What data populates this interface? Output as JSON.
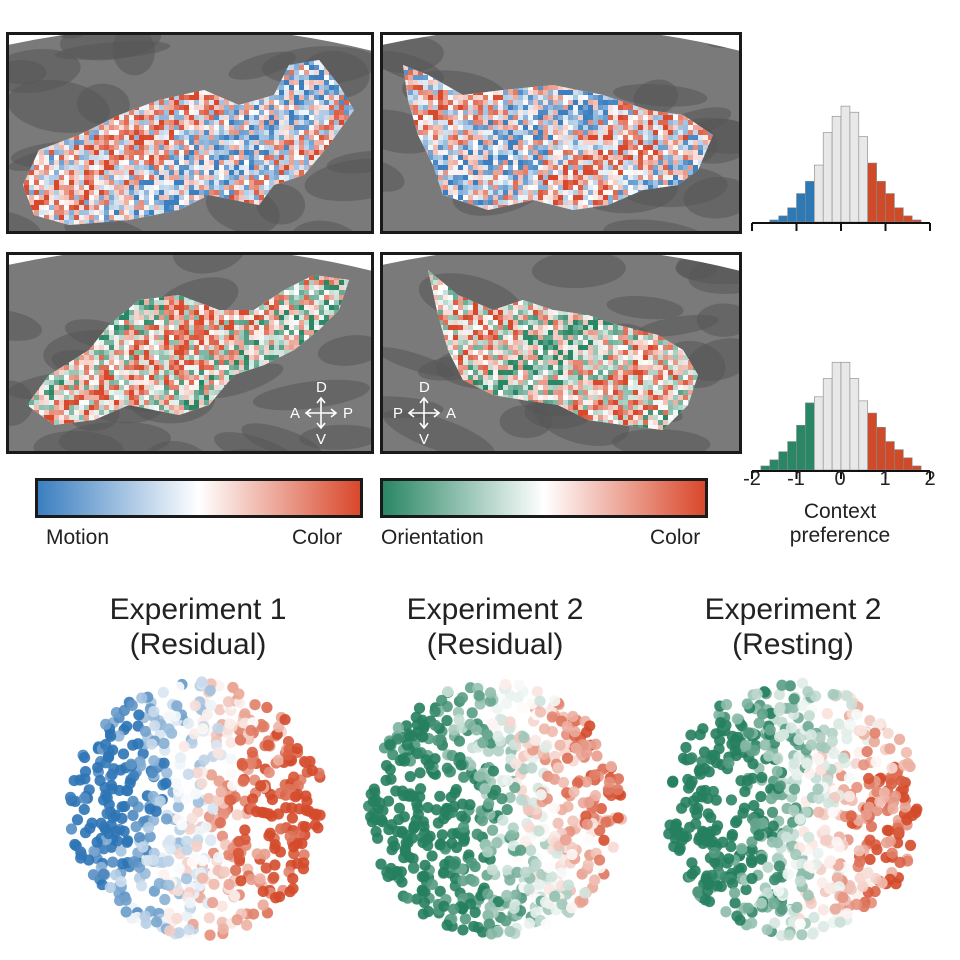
{
  "figure": {
    "top_row": {
      "colorbar": {
        "left_label": "Motion",
        "right_label": "Color",
        "colors": [
          "#3b7fc0",
          "#ffffff",
          "#d9482b"
        ]
      }
    },
    "bottom_row": {
      "colorbar": {
        "left_label": "Orientation",
        "right_label": "Color",
        "colors": [
          "#2a8766",
          "#ffffff",
          "#d9482b"
        ]
      },
      "compass_left": {
        "up": "D",
        "down": "V",
        "left": "A",
        "right": "P"
      },
      "compass_right": {
        "up": "D",
        "down": "V",
        "left": "P",
        "right": "A"
      }
    }
  },
  "chart_data": [
    {
      "type": "bar",
      "name": "Experiment 1 context preference histogram",
      "xlim": [
        -2,
        2
      ],
      "bin_width": 0.2,
      "bin_centers": [
        -1.5,
        -1.3,
        -1.1,
        -0.9,
        -0.7,
        -0.5,
        -0.3,
        -0.1,
        0.1,
        0.3,
        0.5,
        0.7,
        0.9,
        1.1,
        1.3,
        1.5,
        1.7
      ],
      "values": [
        1,
        3,
        7,
        14,
        20,
        28,
        44,
        52,
        57,
        54,
        42,
        29,
        20,
        14,
        7,
        3,
        1
      ],
      "colors": [
        "#2d79b5",
        "#2d79b5",
        "#2d79b5",
        "#2d79b5",
        "#2d79b5",
        "#e8e8e8",
        "#e8e8e8",
        "#e8e8e8",
        "#e8e8e8",
        "#e8e8e8",
        "#e8e8e8",
        "#ce4a29",
        "#ce4a29",
        "#ce4a29",
        "#ce4a29",
        "#ce4a29",
        "#ce4a29"
      ]
    },
    {
      "type": "bar",
      "name": "Experiment 2 context preference histogram",
      "xlim": [
        -2,
        2
      ],
      "bin_width": 0.2,
      "bin_centers": [
        -1.7,
        -1.5,
        -1.3,
        -1.1,
        -0.9,
        -0.7,
        -0.5,
        -0.3,
        -0.1,
        0.1,
        0.3,
        0.5,
        0.7,
        0.9,
        1.1,
        1.3,
        1.5,
        1.7
      ],
      "values": [
        2,
        5,
        9,
        14,
        22,
        33,
        36,
        45,
        53,
        53,
        45,
        34,
        28,
        21,
        14,
        10,
        6,
        2
      ],
      "colors": [
        "#2a8766",
        "#2a8766",
        "#2a8766",
        "#2a8766",
        "#2a8766",
        "#2a8766",
        "#e8e8e8",
        "#e8e8e8",
        "#e8e8e8",
        "#e8e8e8",
        "#e8e8e8",
        "#e8e8e8",
        "#ce4a29",
        "#ce4a29",
        "#ce4a29",
        "#ce4a29",
        "#ce4a29",
        "#ce4a29"
      ],
      "xticks": [
        -2,
        -1,
        0,
        1,
        2
      ],
      "xtick_labels": [
        "-2",
        "-1",
        "0",
        "1",
        "2"
      ],
      "xlabel": [
        "Context",
        "preference"
      ]
    },
    {
      "type": "scatter",
      "title": [
        "Experiment 1",
        "(Residual)"
      ],
      "palette": "motion-color",
      "n_points": 620,
      "cluster_a_center": [
        -0.5,
        -0.1
      ],
      "cluster_b_center": [
        0.55,
        0.05
      ]
    },
    {
      "type": "scatter",
      "title": [
        "Experiment 2",
        "(Residual)"
      ],
      "palette": "orientation-color",
      "n_points": 680,
      "cluster_a_center": [
        -0.3,
        0.0
      ],
      "cluster_b_center": [
        0.65,
        -0.2
      ]
    },
    {
      "type": "scatter",
      "title": [
        "Experiment 2",
        "(Resting)"
      ],
      "palette": "orientation-color",
      "n_points": 680,
      "cluster_a_center": [
        -0.4,
        0.0
      ],
      "cluster_b_center": [
        0.6,
        0.1
      ]
    }
  ]
}
